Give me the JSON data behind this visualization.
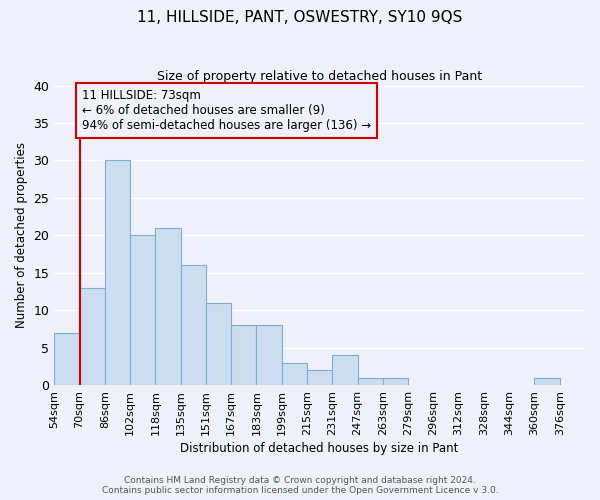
{
  "title": "11, HILLSIDE, PANT, OSWESTRY, SY10 9QS",
  "subtitle": "Size of property relative to detached houses in Pant",
  "xlabel": "Distribution of detached houses by size in Pant",
  "ylabel": "Number of detached properties",
  "footer_line1": "Contains HM Land Registry data © Crown copyright and database right 2024.",
  "footer_line2": "Contains public sector information licensed under the Open Government Licence v 3.0.",
  "bin_labels": [
    "54sqm",
    "70sqm",
    "86sqm",
    "102sqm",
    "118sqm",
    "135sqm",
    "151sqm",
    "167sqm",
    "183sqm",
    "199sqm",
    "215sqm",
    "231sqm",
    "247sqm",
    "263sqm",
    "279sqm",
    "296sqm",
    "312sqm",
    "328sqm",
    "344sqm",
    "360sqm",
    "376sqm"
  ],
  "bar_values": [
    7,
    13,
    30,
    20,
    21,
    16,
    11,
    8,
    8,
    3,
    2,
    4,
    1,
    1,
    0,
    0,
    0,
    0,
    0,
    1,
    0
  ],
  "bar_color": "#ccddf0",
  "bar_edge_color": "#7aafd4",
  "reference_line_x": 1.0,
  "reference_line_color": "#cc0000",
  "ylim": [
    0,
    40
  ],
  "yticks": [
    0,
    5,
    10,
    15,
    20,
    25,
    30,
    35,
    40
  ],
  "annotation_text": "11 HILLSIDE: 73sqm\n← 6% of detached houses are smaller (9)\n94% of semi-detached houses are larger (136) →",
  "annotation_box_edge": "#cc0000",
  "background_color": "#f0f0fa",
  "grid_color": "#ffffff",
  "plot_bg_color": "#e8e8f5"
}
